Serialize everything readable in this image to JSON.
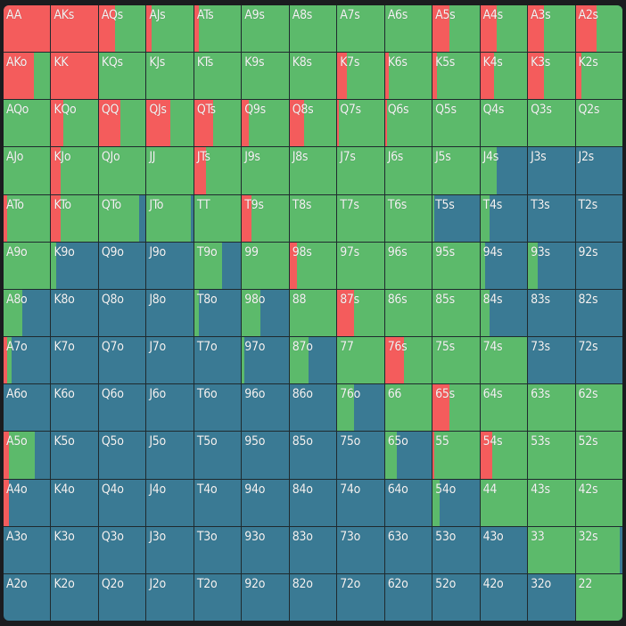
{
  "colors": {
    "raise": "#f45c5c",
    "call": "#5cba6b",
    "fold": "#3a7a94"
  },
  "rows": [
    [
      "AA",
      "AKs",
      "AQs",
      "AJs",
      "ATs",
      "A9s",
      "A8s",
      "A7s",
      "A6s",
      "A5s",
      "A4s",
      "A3s",
      "A2s"
    ],
    [
      "AKo",
      "KK",
      "KQs",
      "KJs",
      "KTs",
      "K9s",
      "K8s",
      "K7s",
      "K6s",
      "K5s",
      "K4s",
      "K3s",
      "K2s"
    ],
    [
      "AQo",
      "KQo",
      "QQ",
      "QJs",
      "QTs",
      "Q9s",
      "Q8s",
      "Q7s",
      "Q6s",
      "Q5s",
      "Q4s",
      "Q3s",
      "Q2s"
    ],
    [
      "AJo",
      "KJo",
      "QJo",
      "JJ",
      "JTs",
      "J9s",
      "J8s",
      "J7s",
      "J6s",
      "J5s",
      "J4s",
      "J3s",
      "J2s"
    ],
    [
      "ATo",
      "KTo",
      "QTo",
      "JTo",
      "TT",
      "T9s",
      "T8s",
      "T7s",
      "T6s",
      "T5s",
      "T4s",
      "T3s",
      "T2s"
    ],
    [
      "A9o",
      "K9o",
      "Q9o",
      "J9o",
      "T9o",
      "99",
      "98s",
      "97s",
      "96s",
      "95s",
      "94s",
      "93s",
      "92s"
    ],
    [
      "A8o",
      "K8o",
      "Q8o",
      "J8o",
      "T8o",
      "98o",
      "88",
      "87s",
      "86s",
      "85s",
      "84s",
      "83s",
      "82s"
    ],
    [
      "A7o",
      "K7o",
      "Q7o",
      "J7o",
      "T7o",
      "97o",
      "87o",
      "77",
      "76s",
      "75s",
      "74s",
      "73s",
      "72s"
    ],
    [
      "A6o",
      "K6o",
      "Q6o",
      "J6o",
      "T6o",
      "96o",
      "86o",
      "76o",
      "66",
      "65s",
      "64s",
      "63s",
      "62s"
    ],
    [
      "A5o",
      "K5o",
      "Q5o",
      "J5o",
      "T5o",
      "95o",
      "85o",
      "75o",
      "65o",
      "55",
      "54s",
      "53s",
      "52s"
    ],
    [
      "A4o",
      "K4o",
      "Q4o",
      "J4o",
      "T4o",
      "94o",
      "84o",
      "74o",
      "64o",
      "54o",
      "44",
      "43s",
      "42s"
    ],
    [
      "A3o",
      "K3o",
      "Q3o",
      "J3o",
      "T3o",
      "93o",
      "83o",
      "73o",
      "63o",
      "53o",
      "43o",
      "33",
      "32s"
    ],
    [
      "A2o",
      "K2o",
      "Q2o",
      "J2o",
      "T2o",
      "92o",
      "82o",
      "72o",
      "62o",
      "52o",
      "42o",
      "32o",
      "22"
    ]
  ],
  "freq": [
    [
      [
        1,
        0
      ],
      [
        1,
        0
      ],
      [
        0.35,
        0.65
      ],
      [
        0.1,
        0.9
      ],
      [
        0.1,
        0.9
      ],
      [
        0,
        1
      ],
      [
        0,
        1
      ],
      [
        0,
        1
      ],
      [
        0,
        1
      ],
      [
        0.35,
        0.65
      ],
      [
        0.35,
        0.65
      ],
      [
        0.35,
        0.65
      ],
      [
        0.45,
        0.55
      ]
    ],
    [
      [
        0.65,
        0.35
      ],
      [
        1,
        0
      ],
      [
        0,
        1
      ],
      [
        0,
        1
      ],
      [
        0,
        1
      ],
      [
        0,
        1
      ],
      [
        0,
        1
      ],
      [
        0.2,
        0.8
      ],
      [
        0.08,
        0.92
      ],
      [
        0.1,
        0.9
      ],
      [
        0.3,
        0.7
      ],
      [
        0.35,
        0.65
      ],
      [
        0.12,
        0.88
      ]
    ],
    [
      [
        0,
        1
      ],
      [
        0.25,
        0.75
      ],
      [
        0.45,
        0.55
      ],
      [
        0.5,
        0.5
      ],
      [
        0.4,
        0.6
      ],
      [
        0.15,
        0.85
      ],
      [
        0.3,
        0.7
      ],
      [
        0.04,
        0.96
      ],
      [
        0.04,
        0.96
      ],
      [
        0,
        1
      ],
      [
        0,
        1
      ],
      [
        0,
        1
      ],
      [
        0,
        1
      ]
    ],
    [
      [
        0,
        1
      ],
      [
        0.2,
        0.8
      ],
      [
        0,
        1
      ],
      [
        0,
        1
      ],
      [
        0.25,
        0.75
      ],
      [
        0,
        1
      ],
      [
        0,
        1
      ],
      [
        0,
        1
      ],
      [
        0,
        1
      ],
      [
        0,
        1
      ],
      [
        0,
        0.35
      ],
      [
        0,
        0
      ],
      [
        0,
        0
      ]
    ],
    [
      [
        0.08,
        0.92
      ],
      [
        0.2,
        0.8
      ],
      [
        0,
        0.85
      ],
      [
        0,
        0.95
      ],
      [
        0,
        1
      ],
      [
        0.2,
        0.8
      ],
      [
        0,
        1
      ],
      [
        0,
        1
      ],
      [
        0,
        1
      ],
      [
        0,
        0.04
      ],
      [
        0,
        0.2
      ],
      [
        0,
        0
      ],
      [
        0,
        0
      ]
    ],
    [
      [
        0,
        1
      ],
      [
        0,
        0.1
      ],
      [
        0,
        0
      ],
      [
        0,
        0
      ],
      [
        0,
        0.6
      ],
      [
        0,
        1
      ],
      [
        0.15,
        0.85
      ],
      [
        0,
        1
      ],
      [
        0,
        1
      ],
      [
        0,
        1
      ],
      [
        0,
        0.1
      ],
      [
        0,
        0.2
      ],
      [
        0,
        0
      ]
    ],
    [
      [
        0,
        0.4
      ],
      [
        0,
        0
      ],
      [
        0,
        0
      ],
      [
        0,
        0
      ],
      [
        0,
        0.1
      ],
      [
        0,
        0.4
      ],
      [
        0,
        1
      ],
      [
        0.35,
        0.65
      ],
      [
        0,
        1
      ],
      [
        0,
        1
      ],
      [
        0,
        0.2
      ],
      [
        0,
        0
      ],
      [
        0,
        0
      ]
    ],
    [
      [
        0.08,
        0.1
      ],
      [
        0,
        0
      ],
      [
        0,
        0
      ],
      [
        0,
        0
      ],
      [
        0,
        0
      ],
      [
        0,
        0.05
      ],
      [
        0,
        0.4
      ],
      [
        0,
        1
      ],
      [
        0.4,
        0.6
      ],
      [
        0,
        1
      ],
      [
        0,
        1
      ],
      [
        0,
        0
      ],
      [
        0,
        0
      ]
    ],
    [
      [
        0,
        0
      ],
      [
        0,
        0
      ],
      [
        0,
        0
      ],
      [
        0,
        0
      ],
      [
        0,
        0
      ],
      [
        0,
        0
      ],
      [
        0,
        0
      ],
      [
        0,
        0.35
      ],
      [
        0,
        1
      ],
      [
        0.35,
        0.65
      ],
      [
        0,
        1
      ],
      [
        0,
        1
      ],
      [
        0,
        1
      ]
    ],
    [
      [
        0.12,
        0.55
      ],
      [
        0,
        0
      ],
      [
        0,
        0
      ],
      [
        0,
        0
      ],
      [
        0,
        0
      ],
      [
        0,
        0
      ],
      [
        0,
        0
      ],
      [
        0,
        0
      ],
      [
        0,
        0.25
      ],
      [
        0.04,
        0.96
      ],
      [
        0.25,
        0.75
      ],
      [
        0,
        1
      ],
      [
        0,
        1
      ]
    ],
    [
      [
        0.12,
        0
      ],
      [
        0,
        0
      ],
      [
        0,
        0
      ],
      [
        0,
        0
      ],
      [
        0,
        0
      ],
      [
        0,
        0
      ],
      [
        0,
        0
      ],
      [
        0,
        0
      ],
      [
        0,
        0
      ],
      [
        0,
        0.15
      ],
      [
        0,
        1
      ],
      [
        0,
        1
      ],
      [
        0,
        1
      ]
    ],
    [
      [
        0,
        0
      ],
      [
        0,
        0
      ],
      [
        0,
        0
      ],
      [
        0,
        0
      ],
      [
        0,
        0
      ],
      [
        0,
        0
      ],
      [
        0,
        0
      ],
      [
        0,
        0
      ],
      [
        0,
        0
      ],
      [
        0,
        0
      ],
      [
        0,
        0
      ],
      [
        0,
        1
      ],
      [
        0,
        0.94
      ]
    ],
    [
      [
        0,
        0
      ],
      [
        0,
        0
      ],
      [
        0,
        0
      ],
      [
        0,
        0
      ],
      [
        0,
        0
      ],
      [
        0,
        0
      ],
      [
        0,
        0
      ],
      [
        0,
        0
      ],
      [
        0,
        0
      ],
      [
        0,
        0
      ],
      [
        0,
        0
      ],
      [
        0,
        0
      ],
      [
        0,
        1
      ]
    ]
  ]
}
